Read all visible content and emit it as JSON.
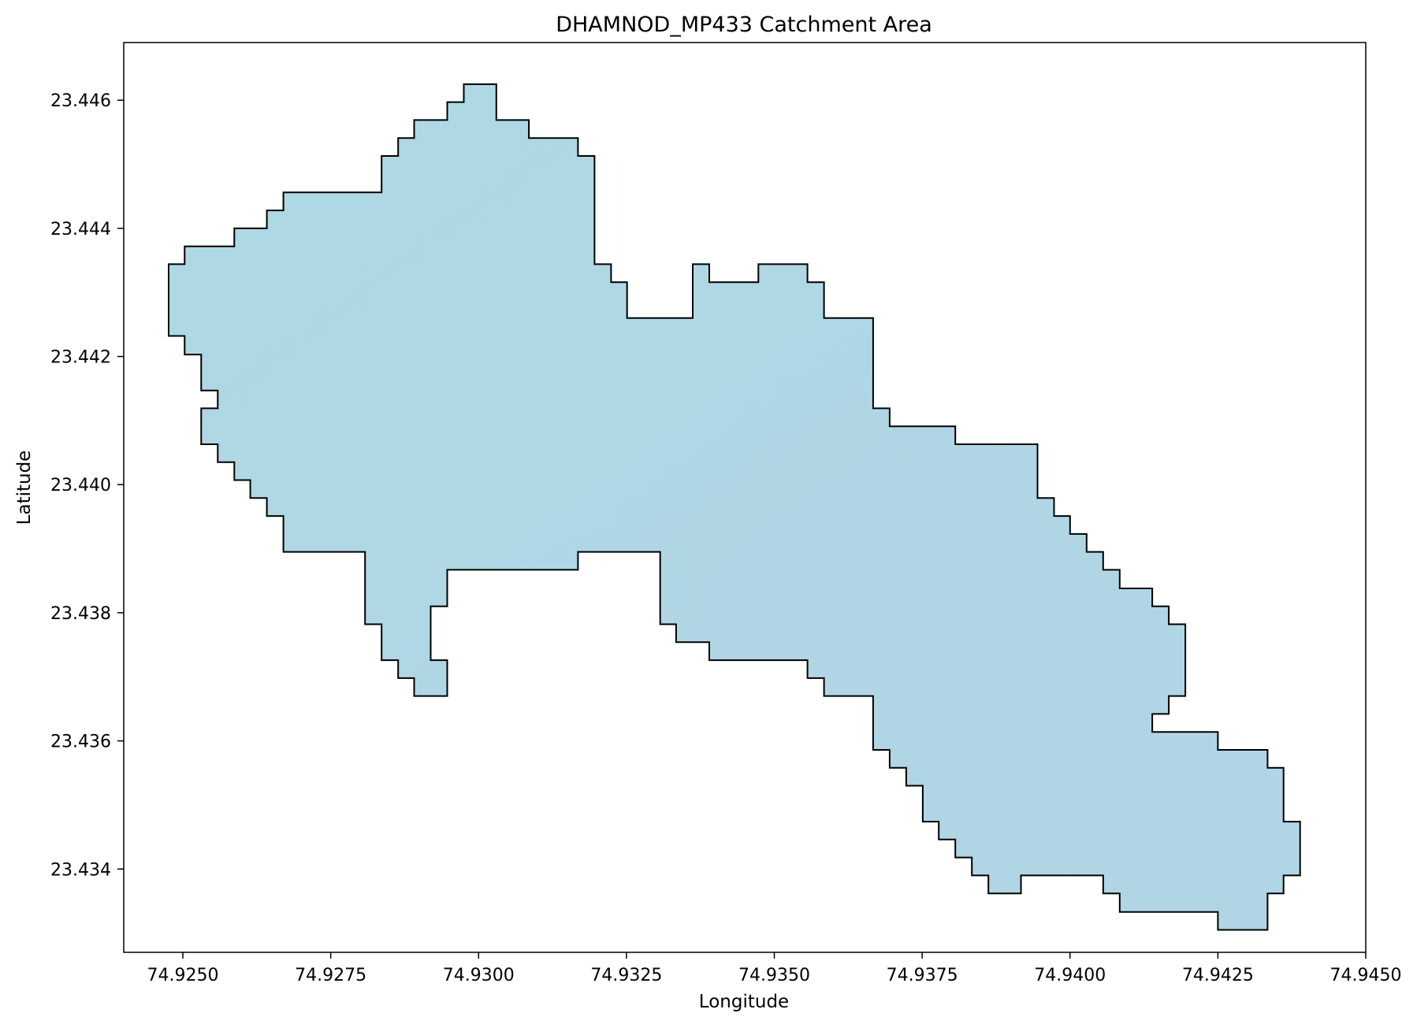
{
  "chart_data": {
    "type": "polygon",
    "title": "DHAMNOD_MP433 Catchment Area",
    "xlabel": "Longitude",
    "ylabel": "Latitude",
    "xlim": [
      74.924,
      74.945
    ],
    "ylim": [
      23.4327,
      23.4469
    ],
    "xticks": [
      74.925,
      74.9275,
      74.93,
      74.9325,
      74.935,
      74.9375,
      74.94,
      74.9425,
      74.945
    ],
    "xtick_labels": [
      "74.9250",
      "74.9275",
      "74.9300",
      "74.9325",
      "74.9350",
      "74.9375",
      "74.9400",
      "74.9425",
      "74.9450"
    ],
    "yticks": [
      23.434,
      23.436,
      23.438,
      23.44,
      23.442,
      23.444,
      23.446
    ],
    "ytick_labels": [
      "23.434",
      "23.436",
      "23.438",
      "23.440",
      "23.442",
      "23.444",
      "23.446"
    ],
    "fill_color": "#b1d5e5",
    "edge_color": "#000000",
    "grid": false,
    "outline": [
      [
        74.92975,
        23.44625
      ],
      [
        74.9303,
        23.44625
      ],
      [
        74.9303,
        23.44569
      ],
      [
        74.93085,
        23.44569
      ],
      [
        74.93085,
        23.44541
      ],
      [
        74.93168,
        23.44541
      ],
      [
        74.93168,
        23.44513
      ],
      [
        74.93196,
        23.44513
      ],
      [
        74.93196,
        23.44344
      ],
      [
        74.93224,
        23.44344
      ],
      [
        74.93224,
        23.44316
      ],
      [
        74.93251,
        23.44316
      ],
      [
        74.93251,
        23.4426
      ],
      [
        74.93362,
        23.4426
      ],
      [
        74.93362,
        23.44344
      ],
      [
        74.9339,
        23.44344
      ],
      [
        74.9339,
        23.44316
      ],
      [
        74.93473,
        23.44316
      ],
      [
        74.93473,
        23.44344
      ],
      [
        74.93556,
        23.44344
      ],
      [
        74.93556,
        23.44316
      ],
      [
        74.93584,
        23.44316
      ],
      [
        74.93584,
        23.4426
      ],
      [
        74.93667,
        23.4426
      ],
      [
        74.93667,
        23.44119
      ],
      [
        74.93695,
        23.44119
      ],
      [
        74.93695,
        23.44091
      ],
      [
        74.93806,
        23.44091
      ],
      [
        74.93806,
        23.44063
      ],
      [
        74.93945,
        23.44063
      ],
      [
        74.93945,
        23.43979
      ],
      [
        74.93973,
        23.43979
      ],
      [
        74.93973,
        23.43951
      ],
      [
        74.94,
        23.43951
      ],
      [
        74.94,
        23.43923
      ],
      [
        74.94028,
        23.43923
      ],
      [
        74.94028,
        23.43895
      ],
      [
        74.94056,
        23.43895
      ],
      [
        74.94056,
        23.43867
      ],
      [
        74.94084,
        23.43867
      ],
      [
        74.94084,
        23.43838
      ],
      [
        74.94139,
        23.43838
      ],
      [
        74.94139,
        23.4381
      ],
      [
        74.94167,
        23.4381
      ],
      [
        74.94167,
        23.43782
      ],
      [
        74.94195,
        23.43782
      ],
      [
        74.94195,
        23.4367
      ],
      [
        74.94167,
        23.4367
      ],
      [
        74.94167,
        23.43642
      ],
      [
        74.94139,
        23.43642
      ],
      [
        74.94139,
        23.43614
      ],
      [
        74.9425,
        23.43614
      ],
      [
        74.9425,
        23.43586
      ],
      [
        74.94334,
        23.43586
      ],
      [
        74.94334,
        23.43558
      ],
      [
        74.94361,
        23.43558
      ],
      [
        74.94361,
        23.43474
      ],
      [
        74.94389,
        23.43474
      ],
      [
        74.94389,
        23.4339
      ],
      [
        74.94361,
        23.4339
      ],
      [
        74.94361,
        23.43362
      ],
      [
        74.94334,
        23.43362
      ],
      [
        74.94334,
        23.43305
      ],
      [
        74.9425,
        23.43305
      ],
      [
        74.9425,
        23.43333
      ],
      [
        74.94084,
        23.43333
      ],
      [
        74.94084,
        23.43362
      ],
      [
        74.94056,
        23.43362
      ],
      [
        74.94056,
        23.4339
      ],
      [
        74.93917,
        23.4339
      ],
      [
        74.93917,
        23.43362
      ],
      [
        74.93862,
        23.43362
      ],
      [
        74.93862,
        23.4339
      ],
      [
        74.93834,
        23.4339
      ],
      [
        74.93834,
        23.43418
      ],
      [
        74.93806,
        23.43418
      ],
      [
        74.93806,
        23.43446
      ],
      [
        74.93778,
        23.43446
      ],
      [
        74.93778,
        23.43474
      ],
      [
        74.93751,
        23.43474
      ],
      [
        74.93751,
        23.4353
      ],
      [
        74.93723,
        23.4353
      ],
      [
        74.93723,
        23.43558
      ],
      [
        74.93695,
        23.43558
      ],
      [
        74.93695,
        23.43586
      ],
      [
        74.93667,
        23.43586
      ],
      [
        74.93667,
        23.4367
      ],
      [
        74.93584,
        23.4367
      ],
      [
        74.93584,
        23.43698
      ],
      [
        74.93556,
        23.43698
      ],
      [
        74.93556,
        23.43726
      ],
      [
        74.9339,
        23.43726
      ],
      [
        74.9339,
        23.43754
      ],
      [
        74.93334,
        23.43754
      ],
      [
        74.93334,
        23.43782
      ],
      [
        74.93307,
        23.43782
      ],
      [
        74.93307,
        23.43895
      ],
      [
        74.93168,
        23.43895
      ],
      [
        74.93168,
        23.43867
      ],
      [
        74.92947,
        23.43867
      ],
      [
        74.92947,
        23.4381
      ],
      [
        74.92919,
        23.4381
      ],
      [
        74.92919,
        23.43726
      ],
      [
        74.92947,
        23.43726
      ],
      [
        74.92947,
        23.4367
      ],
      [
        74.92891,
        23.4367
      ],
      [
        74.92891,
        23.43698
      ],
      [
        74.92864,
        23.43698
      ],
      [
        74.92864,
        23.43726
      ],
      [
        74.92836,
        23.43726
      ],
      [
        74.92836,
        23.43782
      ],
      [
        74.92808,
        23.43782
      ],
      [
        74.92808,
        23.43895
      ],
      [
        74.9267,
        23.43895
      ],
      [
        74.9267,
        23.43951
      ],
      [
        74.92642,
        23.43951
      ],
      [
        74.92642,
        23.43979
      ],
      [
        74.92614,
        23.43979
      ],
      [
        74.92614,
        23.44007
      ],
      [
        74.92587,
        23.44007
      ],
      [
        74.92587,
        23.44035
      ],
      [
        74.92559,
        23.44035
      ],
      [
        74.92559,
        23.44063
      ],
      [
        74.92531,
        23.44063
      ],
      [
        74.92531,
        23.44119
      ],
      [
        74.92559,
        23.44119
      ],
      [
        74.92559,
        23.44147
      ],
      [
        74.92531,
        23.44147
      ],
      [
        74.92531,
        23.44203
      ],
      [
        74.92503,
        23.44203
      ],
      [
        74.92503,
        23.44232
      ],
      [
        74.92476,
        23.44232
      ],
      [
        74.92476,
        23.44344
      ],
      [
        74.92503,
        23.44344
      ],
      [
        74.92503,
        23.44372
      ],
      [
        74.92587,
        23.44372
      ],
      [
        74.92587,
        23.444
      ],
      [
        74.92642,
        23.444
      ],
      [
        74.92642,
        23.44428
      ],
      [
        74.9267,
        23.44428
      ],
      [
        74.9267,
        23.44456
      ],
      [
        74.92836,
        23.44456
      ],
      [
        74.92836,
        23.44513
      ],
      [
        74.92864,
        23.44513
      ],
      [
        74.92864,
        23.44541
      ],
      [
        74.92891,
        23.44541
      ],
      [
        74.92891,
        23.44569
      ],
      [
        74.92947,
        23.44569
      ],
      [
        74.92947,
        23.44597
      ],
      [
        74.92975,
        23.44597
      ]
    ]
  }
}
